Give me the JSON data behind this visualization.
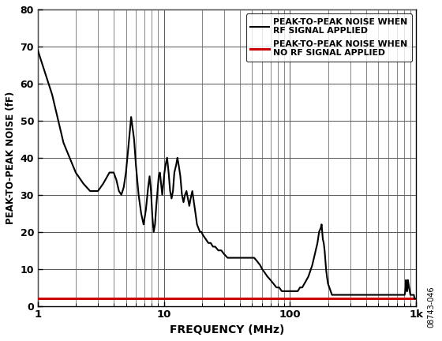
{
  "title": "",
  "xlabel": "FREQUENCY (MHz)",
  "ylabel": "PEAK-TO-PEAK NOISE (fF)",
  "xlim": [
    1,
    1000
  ],
  "ylim": [
    0,
    80
  ],
  "yticks": [
    0,
    10,
    20,
    30,
    40,
    50,
    60,
    70,
    80
  ],
  "red_line_value": 2.0,
  "legend": [
    {
      "label": "PEAK-TO-PEAK NOISE WHEN\nRF SIGNAL APPLIED",
      "color": "#000000",
      "lw": 1.5
    },
    {
      "label": "PEAK-TO-PEAK NOISE WHEN\nNO RF SIGNAL APPLIED",
      "color": "#cc0000",
      "lw": 2.2
    }
  ],
  "watermark": "08743-046",
  "background_color": "#ffffff",
  "grid_color": "#555555",
  "black_x": [
    1.0,
    1.3,
    1.6,
    2.0,
    2.3,
    2.6,
    3.0,
    3.3,
    3.7,
    4.0,
    4.2,
    4.4,
    4.6,
    4.8,
    5.0,
    5.2,
    5.5,
    5.8,
    6.0,
    6.3,
    6.6,
    6.9,
    7.2,
    7.5,
    7.7,
    7.9,
    8.1,
    8.3,
    8.5,
    8.7,
    8.9,
    9.1,
    9.3,
    9.5,
    9.7,
    9.9,
    10.1,
    10.3,
    10.6,
    10.9,
    11.2,
    11.5,
    11.8,
    12.1,
    12.5,
    12.8,
    13.1,
    13.5,
    13.9,
    14.3,
    14.7,
    15.1,
    15.5,
    15.9,
    16.3,
    16.8,
    17.3,
    17.8,
    18.3,
    18.8,
    19.3,
    19.8,
    20.5,
    21.5,
    22.5,
    23.5,
    24.5,
    25.5,
    27.0,
    28.5,
    30.0,
    32.0,
    34.0,
    36.0,
    38.0,
    40.0,
    42.0,
    45.0,
    48.0,
    50.0,
    52.0,
    55.0,
    58.0,
    60.0,
    63.0,
    66.0,
    70.0,
    74.0,
    78.0,
    82.0,
    86.0,
    90.0,
    95.0,
    100.0,
    105.0,
    110.0,
    115.0,
    120.0,
    125.0,
    130.0,
    135.0,
    140.0,
    150.0,
    160.0,
    165.0,
    170.0,
    175.0,
    178.0,
    180.0,
    182.0,
    185.0,
    188.0,
    190.0,
    193.0,
    196.0,
    200.0,
    205.0,
    210.0,
    215.0,
    220.0,
    230.0,
    240.0,
    250.0,
    260.0,
    270.0,
    280.0,
    290.0,
    300.0,
    320.0,
    340.0,
    360.0,
    380.0,
    400.0,
    420.0,
    440.0,
    460.0,
    480.0,
    500.0,
    520.0,
    540.0,
    560.0,
    580.0,
    600.0,
    620.0,
    640.0,
    660.0,
    680.0,
    700.0,
    720.0,
    740.0,
    760.0,
    780.0,
    800.0,
    810.0,
    820.0,
    825.0,
    830.0,
    835.0,
    840.0,
    845.0,
    850.0,
    855.0,
    860.0,
    870.0,
    880.0,
    890.0,
    900.0,
    910.0,
    920.0,
    930.0,
    940.0,
    950.0,
    960.0,
    970.0,
    980.0,
    990.0,
    1000.0
  ],
  "black_y": [
    69,
    57,
    44,
    36,
    33,
    31,
    31,
    33,
    36,
    36,
    34,
    31,
    30,
    32,
    36,
    42,
    51,
    45,
    38,
    30,
    25,
    22,
    26,
    32,
    35,
    31,
    24,
    20,
    22,
    27,
    31,
    35,
    36,
    33,
    30,
    33,
    36,
    38,
    40,
    36,
    31,
    29,
    31,
    36,
    38,
    40,
    38,
    35,
    30,
    28,
    30,
    31,
    29,
    27,
    29,
    31,
    28,
    25,
    22,
    21,
    20,
    20,
    19,
    18,
    17,
    17,
    16,
    16,
    15,
    15,
    14,
    13,
    13,
    13,
    13,
    13,
    13,
    13,
    13,
    13,
    13,
    12,
    11,
    10,
    9,
    8,
    7,
    6,
    5,
    5,
    4,
    4,
    4,
    4,
    4,
    4,
    4,
    5,
    5,
    6,
    7,
    8,
    11,
    15,
    17,
    20,
    21,
    22,
    20,
    18,
    17,
    15,
    13,
    10,
    8,
    6,
    5,
    4,
    3,
    3,
    3,
    3,
    3,
    3,
    3,
    3,
    3,
    3,
    3,
    3,
    3,
    3,
    3,
    3,
    3,
    3,
    3,
    3,
    3,
    3,
    3,
    3,
    3,
    3,
    3,
    3,
    3,
    3,
    3,
    3,
    3,
    3,
    3,
    3,
    4,
    5,
    7,
    6,
    5,
    4,
    4,
    5,
    7,
    6,
    5,
    4,
    3,
    3,
    3,
    3,
    3,
    3,
    3,
    2,
    2,
    2,
    2
  ]
}
